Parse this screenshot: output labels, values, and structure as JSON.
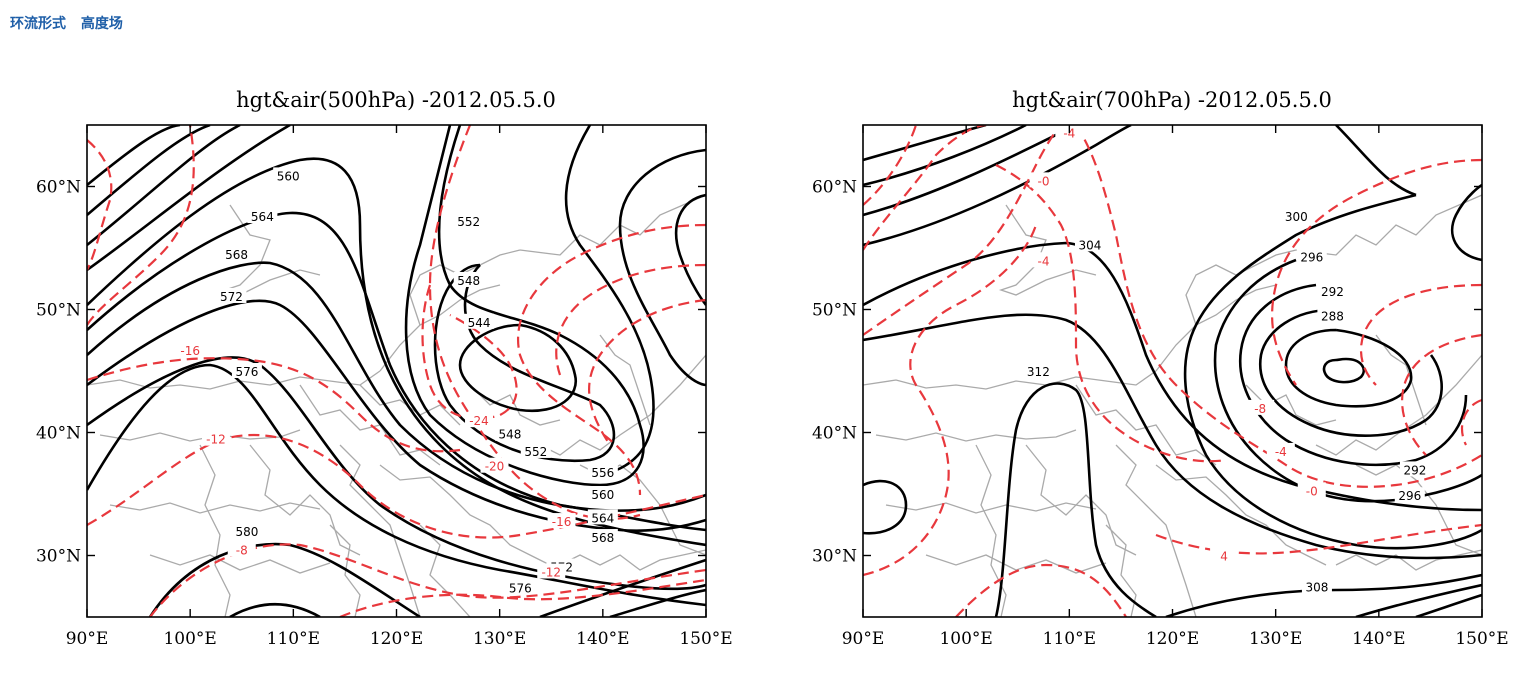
{
  "header": {
    "tab_circulation": "环流形式",
    "tab_height_field": "高度场"
  },
  "chart_data": [
    {
      "type": "contour-map",
      "title": "hgt&air(500hPa)  -2012.05.5.0",
      "x_ticks": [
        "90°E",
        "100°E",
        "110°E",
        "120°E",
        "130°E",
        "140°E",
        "150°E"
      ],
      "y_ticks": [
        "30°N",
        "40°N",
        "50°N",
        "60°N"
      ],
      "xlim": [
        90,
        150
      ],
      "ylim": [
        25,
        65
      ],
      "height_contour_labels": [
        {
          "text": "560",
          "lon": 109.5,
          "lat": 60.9
        },
        {
          "text": "564",
          "lon": 107.0,
          "lat": 57.6
        },
        {
          "text": "568",
          "lon": 104.5,
          "lat": 54.5
        },
        {
          "text": "572",
          "lon": 104.0,
          "lat": 51.1
        },
        {
          "text": "576",
          "lon": 105.5,
          "lat": 45.0
        },
        {
          "text": "580",
          "lon": 105.5,
          "lat": 32.0
        },
        {
          "text": "552",
          "lon": 127.0,
          "lat": 57.2
        },
        {
          "text": "548",
          "lon": 127.0,
          "lat": 52.4
        },
        {
          "text": "544",
          "lon": 128.0,
          "lat": 49.0
        },
        {
          "text": "548",
          "lon": 131.0,
          "lat": 39.9
        },
        {
          "text": "552",
          "lon": 133.5,
          "lat": 38.5
        },
        {
          "text": "556",
          "lon": 140.0,
          "lat": 36.8
        },
        {
          "text": "560",
          "lon": 140.0,
          "lat": 35.0
        },
        {
          "text": "564",
          "lon": 140.0,
          "lat": 33.1
        },
        {
          "text": "568",
          "lon": 140.0,
          "lat": 31.5
        },
        {
          "text": "572",
          "lon": 136.0,
          "lat": 29.1
        },
        {
          "text": "576",
          "lon": 132.0,
          "lat": 27.4
        }
      ],
      "temperature_contour_labels": [
        {
          "text": "-16",
          "lon": 100.0,
          "lat": 46.7
        },
        {
          "text": "-12",
          "lon": 102.5,
          "lat": 39.5
        },
        {
          "text": "-8",
          "lon": 105.0,
          "lat": 30.5
        },
        {
          "text": "-24",
          "lon": 128.0,
          "lat": 41.0
        },
        {
          "text": "-20",
          "lon": 129.5,
          "lat": 37.3
        },
        {
          "text": "-16",
          "lon": 136.0,
          "lat": 32.8
        },
        {
          "text": "-12",
          "lon": 135.0,
          "lat": 28.7
        }
      ],
      "low_center": {
        "lon": 130.0,
        "lat": 46.0
      }
    },
    {
      "type": "contour-map",
      "title": "hgt&air(700hPa)  -2012.05.5.0",
      "x_ticks": [
        "90°E",
        "100°E",
        "110°E",
        "120°E",
        "130°E",
        "140°E",
        "150°E"
      ],
      "y_ticks": [
        "30°N",
        "40°N",
        "50°N",
        "60°N"
      ],
      "xlim": [
        90,
        150
      ],
      "ylim": [
        25,
        65
      ],
      "height_contour_labels": [
        {
          "text": "304",
          "lon": 112.0,
          "lat": 55.3
        },
        {
          "text": "312",
          "lon": 107.0,
          "lat": 45.0
        },
        {
          "text": "300",
          "lon": 132.0,
          "lat": 57.6
        },
        {
          "text": "296",
          "lon": 133.5,
          "lat": 54.3
        },
        {
          "text": "292",
          "lon": 135.5,
          "lat": 51.5
        },
        {
          "text": "288",
          "lon": 135.5,
          "lat": 49.5
        },
        {
          "text": "292",
          "lon": 143.5,
          "lat": 37.0
        },
        {
          "text": "296",
          "lon": 143.0,
          "lat": 34.9
        },
        {
          "text": "308",
          "lon": 134.0,
          "lat": 27.5
        }
      ],
      "temperature_contour_labels": [
        {
          "text": "-4",
          "lon": 110.0,
          "lat": 64.4
        },
        {
          "text": "-0",
          "lon": 107.5,
          "lat": 60.5
        },
        {
          "text": "-4",
          "lon": 107.5,
          "lat": 54.0
        },
        {
          "text": "-8",
          "lon": 128.5,
          "lat": 42.0
        },
        {
          "text": "-4",
          "lon": 130.5,
          "lat": 38.5
        },
        {
          "text": "-0",
          "lon": 133.5,
          "lat": 35.3
        },
        {
          "text": "4",
          "lon": 125.0,
          "lat": 30.0
        }
      ],
      "low_center": {
        "lon": 136.0,
        "lat": 46.5
      }
    }
  ],
  "colors": {
    "height_contour": "#000000",
    "temperature_contour": "#e8383d",
    "border": "#aaaaaa"
  }
}
